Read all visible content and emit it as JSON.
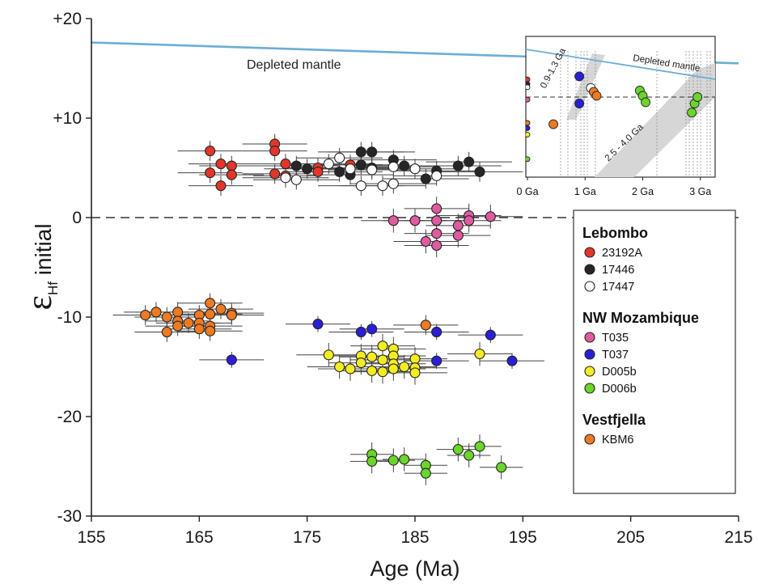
{
  "chart_data": [
    {
      "type": "scatter",
      "title": "",
      "xlabel": "Age (Ma)",
      "ylabel_symbol": "ε",
      "ylabel_subscript": "Hf",
      "ylabel_rest": "initial",
      "xlim": [
        155,
        215
      ],
      "ylim": [
        -30,
        20
      ],
      "x_ticks": [
        "155",
        "165",
        "175",
        "185",
        "195",
        "205",
        "215"
      ],
      "y_ticks": [
        "+20",
        "+10",
        "0",
        "-10",
        "-20",
        "-30"
      ],
      "grid": false,
      "legend_position": "right",
      "reference_lines": [
        {
          "label": "Depleted mantle",
          "from": [
            155,
            17.6
          ],
          "to": [
            215,
            15.5
          ],
          "color": "#6aaed6"
        },
        {
          "label": "",
          "value": 0,
          "style": "dashed",
          "color": "#333333"
        }
      ],
      "legend": {
        "groups": [
          {
            "name": "Lebombo",
            "items": [
              "23192A",
              "17446",
              "17447"
            ]
          },
          {
            "name": "NW Mozambique",
            "items": [
              "T035",
              "T037",
              "D005b",
              "D006b"
            ]
          },
          {
            "name": "Vestfjella",
            "items": [
              "KBM6"
            ]
          }
        ]
      },
      "series": [
        {
          "name": "23192A",
          "color": "#e2362a",
          "xerr": 3,
          "yerr": 1,
          "points": [
            [
              166,
              6.7
            ],
            [
              167,
              5.4
            ],
            [
              168,
              5.2
            ],
            [
              166,
              4.5
            ],
            [
              168,
              4.3
            ],
            [
              167,
              3.2
            ],
            [
              172,
              7.4
            ],
            [
              172,
              6.7
            ],
            [
              173,
              5.4
            ],
            [
              172,
              4.4
            ],
            [
              173,
              4.2
            ],
            [
              176,
              5.0
            ],
            [
              176,
              4.6
            ],
            [
              179,
              5.3
            ]
          ]
        },
        {
          "name": "17446",
          "color": "#262626",
          "xerr": 4,
          "yerr": 1,
          "points": [
            [
              174,
              5.2
            ],
            [
              175,
              4.9
            ],
            [
              178,
              4.6
            ],
            [
              179,
              4.3
            ],
            [
              180,
              6.6
            ],
            [
              180,
              5.3
            ],
            [
              181,
              6.6
            ],
            [
              181,
              5.0
            ],
            [
              183,
              5.8
            ],
            [
              184,
              5.2
            ],
            [
              186,
              3.9
            ],
            [
              187,
              4.7
            ],
            [
              189,
              5.2
            ],
            [
              190,
              5.6
            ],
            [
              191,
              4.6
            ]
          ]
        },
        {
          "name": "17447",
          "color": "#ffffff",
          "xerr": 4,
          "yerr": 1,
          "points": [
            [
              173,
              4.0
            ],
            [
              174,
              3.8
            ],
            [
              177,
              5.4
            ],
            [
              178,
              6.0
            ],
            [
              179,
              4.9
            ],
            [
              180,
              3.2
            ],
            [
              181,
              4.8
            ],
            [
              182,
              3.2
            ],
            [
              183,
              5.1
            ],
            [
              183,
              3.4
            ],
            [
              185,
              4.9
            ],
            [
              187,
              4.2
            ]
          ]
        },
        {
          "name": "T035",
          "color": "#e05aa0",
          "xerr": 3,
          "yerr": 1.2,
          "points": [
            [
              183,
              -0.3
            ],
            [
              185,
              -0.3
            ],
            [
              186,
              -2.4
            ],
            [
              187,
              0.9
            ],
            [
              187,
              -0.3
            ],
            [
              187,
              -1.6
            ],
            [
              187,
              -2.8
            ],
            [
              189,
              -0.8
            ],
            [
              190,
              0.2
            ],
            [
              190,
              -0.3
            ],
            [
              189,
              -1.8
            ],
            [
              192,
              0.1
            ]
          ]
        },
        {
          "name": "T037",
          "color": "#2a1fd6",
          "xerr": 3,
          "yerr": 0.8,
          "points": [
            [
              168,
              -14.3
            ],
            [
              176,
              -10.7
            ],
            [
              180,
              -11.5
            ],
            [
              181,
              -11.2
            ],
            [
              187,
              -11.5
            ],
            [
              187,
              -14.4
            ],
            [
              192,
              -11.8
            ],
            [
              194,
              -14.4
            ]
          ]
        },
        {
          "name": "D005b",
          "color": "#f2ec22",
          "xerr": 3,
          "yerr": 1.2,
          "points": [
            [
              177,
              -13.8
            ],
            [
              178,
              -15.0
            ],
            [
              179,
              -15.2
            ],
            [
              180,
              -13.9
            ],
            [
              180,
              -14.6
            ],
            [
              181,
              -14.0
            ],
            [
              181,
              -15.4
            ],
            [
              182,
              -12.9
            ],
            [
              182,
              -14.3
            ],
            [
              182,
              -15.5
            ],
            [
              183,
              -13.2
            ],
            [
              183,
              -13.9
            ],
            [
              183,
              -14.7
            ],
            [
              183,
              -15.2
            ],
            [
              184,
              -15.0
            ],
            [
              185,
              -14.2
            ],
            [
              185,
              -15.1
            ],
            [
              185,
              -15.6
            ],
            [
              191,
              -13.7
            ]
          ]
        },
        {
          "name": "D006b",
          "color": "#6ad52a",
          "xerr": 2,
          "yerr": 1.2,
          "points": [
            [
              181,
              -23.8
            ],
            [
              181,
              -24.5
            ],
            [
              183,
              -24.4
            ],
            [
              184,
              -24.3
            ],
            [
              186,
              -24.9
            ],
            [
              186,
              -25.7
            ],
            [
              189,
              -23.3
            ],
            [
              190,
              -23.9
            ],
            [
              191,
              -23.0
            ],
            [
              193,
              -25.1
            ]
          ]
        },
        {
          "name": "KBM6",
          "color": "#ee7a22",
          "xerr": 3,
          "yerr": 1,
          "points": [
            [
              160,
              -9.8
            ],
            [
              161,
              -9.5
            ],
            [
              162,
              -10.0
            ],
            [
              162,
              -11.5
            ],
            [
              163,
              -9.5
            ],
            [
              163,
              -10.4
            ],
            [
              163,
              -10.9
            ],
            [
              164,
              -10.6
            ],
            [
              165,
              -9.8
            ],
            [
              165,
              -10.6
            ],
            [
              165,
              -11.2
            ],
            [
              166,
              -8.6
            ],
            [
              166,
              -9.7
            ],
            [
              166,
              -10.9
            ],
            [
              166,
              -11.4
            ],
            [
              167,
              -9.2
            ],
            [
              168,
              -9.6
            ],
            [
              168,
              -9.8
            ],
            [
              186,
              -10.8
            ]
          ]
        }
      ],
      "annotations": [
        "Depleted mantle"
      ]
    },
    {
      "type": "scatter",
      "inset": true,
      "xlim": [
        0,
        3.2
      ],
      "x_ticks": [
        "0 Ga",
        "1 Ga",
        "2 Ga",
        "3 Ga"
      ],
      "bands": [
        {
          "label": "0.9-1.3 Ga",
          "color": "#d6d6d6"
        },
        {
          "label": "2.5 - 4.0 Ga",
          "color": "#d6d6d6"
        }
      ],
      "reference_lines": [
        {
          "label": "Depleted mantle",
          "color": "#6aaed6"
        },
        {
          "label": "",
          "value": 0,
          "style": "dashed",
          "color": "#333333"
        }
      ],
      "points": [
        {
          "series": "23192A",
          "x": 0.0,
          "y": 6.8
        },
        {
          "series": "17446",
          "x": 0.0,
          "y": 5.0
        },
        {
          "series": "17447",
          "x": 0.0,
          "y": 3.8
        },
        {
          "series": "T035",
          "x": 0.0,
          "y": -1.0
        },
        {
          "series": "KBM6",
          "x": 0.0,
          "y": -10.0
        },
        {
          "series": "T037",
          "x": 0.0,
          "y": -12.0
        },
        {
          "series": "D005b",
          "x": 0.0,
          "y": -14.5
        },
        {
          "series": "D006b",
          "x": 0.0,
          "y": -24.0
        },
        {
          "series": "KBM6",
          "x": 0.45,
          "y": -10.5
        },
        {
          "series": "T037",
          "x": 0.9,
          "y": 8.0
        },
        {
          "series": "T037",
          "x": 0.9,
          "y": -2.5
        },
        {
          "series": "17447",
          "x": 1.1,
          "y": 3.5
        },
        {
          "series": "KBM6",
          "x": 1.15,
          "y": 2.0
        },
        {
          "series": "KBM6",
          "x": 1.2,
          "y": 0.5
        },
        {
          "series": "D006b",
          "x": 1.95,
          "y": 2.5
        },
        {
          "series": "D006b",
          "x": 2.0,
          "y": 0.5
        },
        {
          "series": "D006b",
          "x": 2.05,
          "y": -2.0
        },
        {
          "series": "D006b",
          "x": 2.85,
          "y": -6.0
        },
        {
          "series": "D006b",
          "x": 2.9,
          "y": -2.5
        },
        {
          "series": "D006b",
          "x": 2.95,
          "y": 0.0
        }
      ]
    }
  ]
}
